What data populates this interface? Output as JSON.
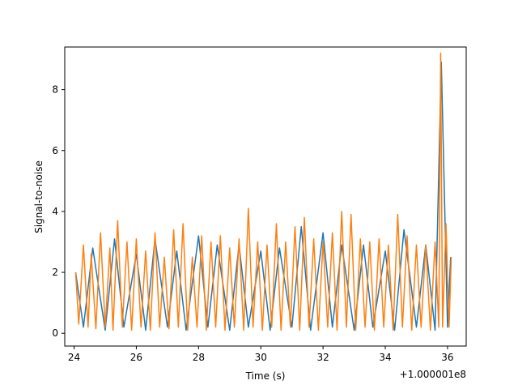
{
  "chart_data": {
    "type": "line",
    "title": "",
    "xlabel": "Time (s)",
    "ylabel": "Signal-to-noise",
    "x_offset_label": "+1.000001e8",
    "xlim": [
      23.7,
      36.6
    ],
    "ylim": [
      -0.42,
      9.4
    ],
    "xticks": [
      24,
      26,
      28,
      30,
      32,
      34,
      36
    ],
    "yticks": [
      0,
      2,
      4,
      6,
      8
    ],
    "grid": false,
    "legend": "none",
    "series": [
      {
        "color": "#1f77b4",
        "x": [
          24.05,
          24.3,
          24.6,
          25.0,
          25.3,
          25.6,
          26.0,
          26.3,
          26.6,
          27.0,
          27.3,
          27.6,
          28.0,
          28.3,
          28.6,
          29.0,
          29.3,
          29.6,
          30.0,
          30.3,
          30.6,
          31.0,
          31.3,
          31.6,
          32.0,
          32.3,
          32.6,
          33.0,
          33.3,
          33.6,
          34.0,
          34.3,
          34.6,
          35.0,
          35.3,
          35.6,
          35.8,
          36.0,
          36.1
        ],
        "y": [
          2.0,
          0.2,
          2.8,
          0.1,
          3.1,
          0.2,
          2.6,
          0.1,
          3.1,
          0.2,
          2.7,
          0.1,
          3.2,
          0.2,
          2.9,
          0.1,
          2.9,
          0.2,
          2.7,
          0.1,
          2.8,
          0.2,
          3.5,
          0.1,
          3.3,
          0.2,
          2.9,
          0.1,
          2.9,
          0.2,
          2.7,
          0.1,
          3.4,
          0.2,
          2.9,
          0.1,
          8.9,
          0.2,
          2.5
        ]
      },
      {
        "color": "#ff7f0e",
        "x": [
          24.05,
          24.15,
          24.3,
          24.45,
          24.55,
          24.7,
          24.85,
          25.0,
          25.15,
          25.25,
          25.4,
          25.55,
          25.7,
          25.85,
          26.0,
          26.15,
          26.3,
          26.45,
          26.6,
          26.75,
          26.9,
          27.05,
          27.2,
          27.35,
          27.5,
          27.65,
          27.8,
          27.95,
          28.1,
          28.25,
          28.4,
          28.55,
          28.7,
          28.85,
          29.0,
          29.15,
          29.3,
          29.45,
          29.6,
          29.75,
          29.9,
          30.05,
          30.2,
          30.35,
          30.5,
          30.65,
          30.8,
          30.95,
          31.1,
          31.25,
          31.4,
          31.55,
          31.7,
          31.85,
          32.0,
          32.15,
          32.3,
          32.45,
          32.6,
          32.75,
          32.9,
          33.05,
          33.2,
          33.35,
          33.5,
          33.65,
          33.8,
          33.95,
          34.1,
          34.25,
          34.4,
          34.55,
          34.7,
          34.85,
          35.0,
          35.15,
          35.3,
          35.45,
          35.6,
          35.72,
          35.78,
          35.84,
          35.95,
          36.05,
          36.12
        ],
        "y": [
          2.0,
          0.3,
          2.9,
          0.2,
          2.6,
          0.15,
          3.3,
          0.2,
          2.8,
          0.1,
          3.7,
          0.2,
          3.0,
          0.1,
          3.1,
          0.2,
          2.7,
          0.1,
          3.3,
          0.2,
          2.5,
          0.15,
          3.4,
          0.2,
          3.6,
          0.1,
          2.5,
          0.2,
          3.2,
          0.1,
          3.0,
          0.2,
          3.2,
          0.1,
          2.8,
          0.2,
          3.1,
          0.1,
          4.1,
          0.2,
          3.0,
          0.1,
          2.9,
          0.2,
          3.6,
          0.1,
          3.0,
          0.2,
          3.5,
          0.1,
          3.8,
          0.2,
          3.1,
          0.1,
          3.0,
          0.2,
          3.3,
          0.1,
          4.0,
          0.2,
          3.9,
          0.1,
          3.1,
          0.2,
          3.0,
          0.1,
          3.1,
          0.2,
          2.9,
          0.1,
          3.9,
          0.2,
          3.2,
          0.1,
          2.9,
          0.2,
          2.9,
          0.1,
          3.0,
          0.2,
          9.2,
          0.2,
          3.6,
          0.2,
          2.5
        ]
      }
    ]
  }
}
